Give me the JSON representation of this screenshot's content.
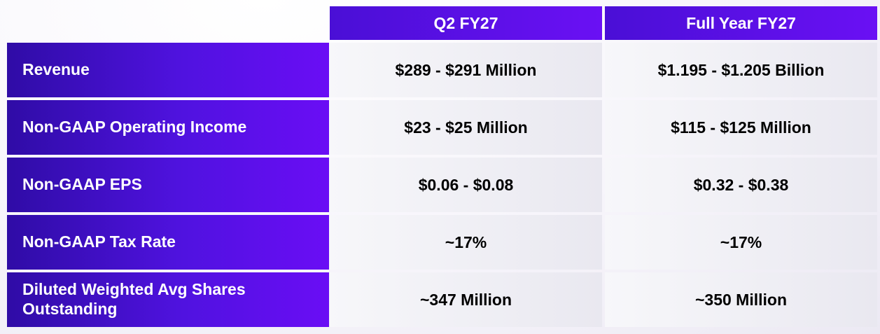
{
  "table": {
    "headers": [
      "Q2 FY27",
      "Full Year FY27"
    ],
    "rows": [
      {
        "label": "Revenue",
        "q2": "$289 - $291 Million",
        "fy": "$1.195 - $1.205 Billion"
      },
      {
        "label": "Non-GAAP Operating Income",
        "q2": "$23 - $25 Million",
        "fy": "$115 - $125 Million"
      },
      {
        "label": "Non-GAAP EPS",
        "q2": "$0.06 - $0.08",
        "fy": "$0.32 - $0.38"
      },
      {
        "label": "Non-GAAP Tax Rate",
        "q2": "~17%",
        "fy": "~17%"
      },
      {
        "label": "Diluted Weighted Avg Shares Outstanding",
        "q2": "~347 Million",
        "fy": "~350 Million"
      }
    ]
  },
  "colors": {
    "header_purple": "#5a12e8",
    "label_purple": "#4a10d0",
    "value_bg": "#efeef4"
  }
}
